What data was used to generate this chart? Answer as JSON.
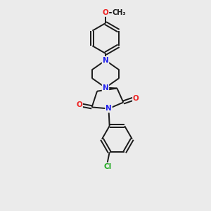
{
  "background_color": "#ebebeb",
  "bond_color": "#1a1a1a",
  "atom_colors": {
    "N": "#2222ee",
    "O": "#ee2222",
    "Cl": "#22aa22",
    "C": "#1a1a1a"
  },
  "bond_width": 1.4,
  "font_size_atom": 7.5,
  "figsize": [
    3.0,
    3.0
  ],
  "dpi": 100
}
